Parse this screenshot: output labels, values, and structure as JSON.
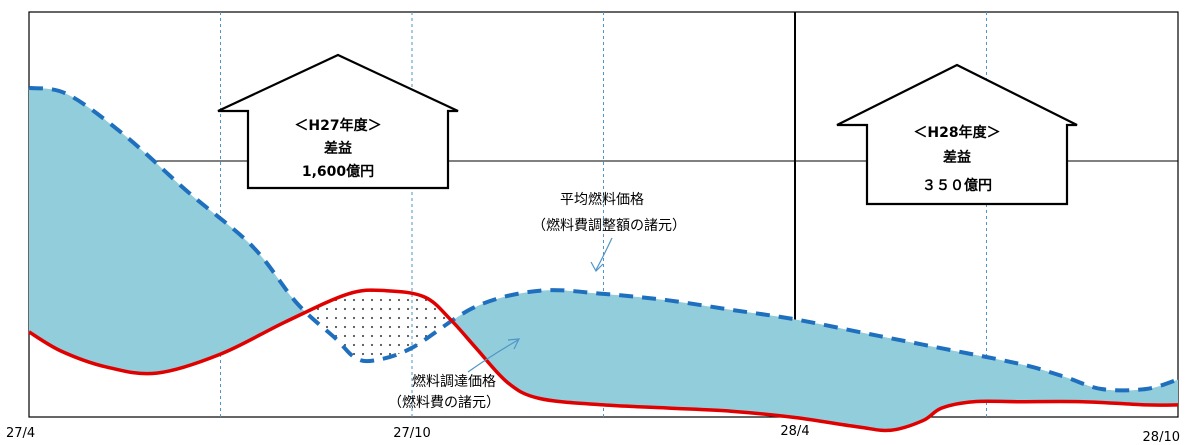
{
  "chart_data": {
    "type": "area",
    "x_unit": "month",
    "x_ticks": [
      "27/4",
      "27/10",
      "28/4",
      "28/10"
    ],
    "fiscal_boundary": "28/4",
    "series": [
      {
        "label": "平均燃料価格（燃料費調整額の諸元）",
        "style": "dashed",
        "color": "#1f6fbf",
        "x": [
          0,
          0.6,
          1.5,
          2.5,
          3.5,
          4.2,
          4.8,
          5.1,
          5.4,
          6,
          7,
          8,
          9,
          10,
          11,
          12,
          13,
          14,
          15.5,
          16.2,
          16.8,
          17.5,
          18
        ],
        "y": [
          0.95,
          0.93,
          0.8,
          0.62,
          0.45,
          0.27,
          0.16,
          0.1,
          0.09,
          0.13,
          0.26,
          0.31,
          0.3,
          0.28,
          0.25,
          0.22,
          0.18,
          0.14,
          0.08,
          0.04,
          0.0,
          0.0,
          0.03
        ]
      },
      {
        "label": "燃料調達価格（燃料費の諸元）",
        "style": "solid",
        "color": "#e00000",
        "x": [
          0,
          0.5,
          1.2,
          2,
          3,
          4,
          5,
          5.6,
          6.2,
          6.6,
          7,
          7.5,
          8,
          9,
          10,
          11,
          12,
          13,
          13.5,
          14,
          14.3,
          14.8,
          15.5,
          16.5,
          17.5,
          18
        ],
        "y": [
          0.18,
          0.12,
          0.07,
          0.05,
          0.11,
          0.21,
          0.3,
          0.31,
          0.29,
          0.22,
          0.13,
          0.02,
          -0.03,
          -0.05,
          -0.06,
          -0.07,
          -0.09,
          -0.12,
          -0.13,
          -0.1,
          -0.06,
          -0.04,
          -0.04,
          -0.04,
          -0.05,
          -0.05
        ]
      }
    ],
    "annotations": [
      {
        "lines": [
          "＜H27年度＞",
          "差益",
          "1,600億円"
        ]
      },
      {
        "lines": [
          "＜H28年度＞",
          "差益",
          "３５０億円"
        ]
      },
      {
        "lines": [
          "平均燃料価格",
          "（燃料費調整額の諸元）"
        ]
      },
      {
        "lines": [
          "燃料調達価格",
          "（燃料費の諸元）"
        ]
      }
    ],
    "colors": {
      "gain_fill": "#92cddc",
      "loss_pattern": "#555555",
      "gridline": "#4f95c7",
      "axis": "#000000"
    },
    "grid": "vertical-dashed",
    "legend": "none"
  }
}
